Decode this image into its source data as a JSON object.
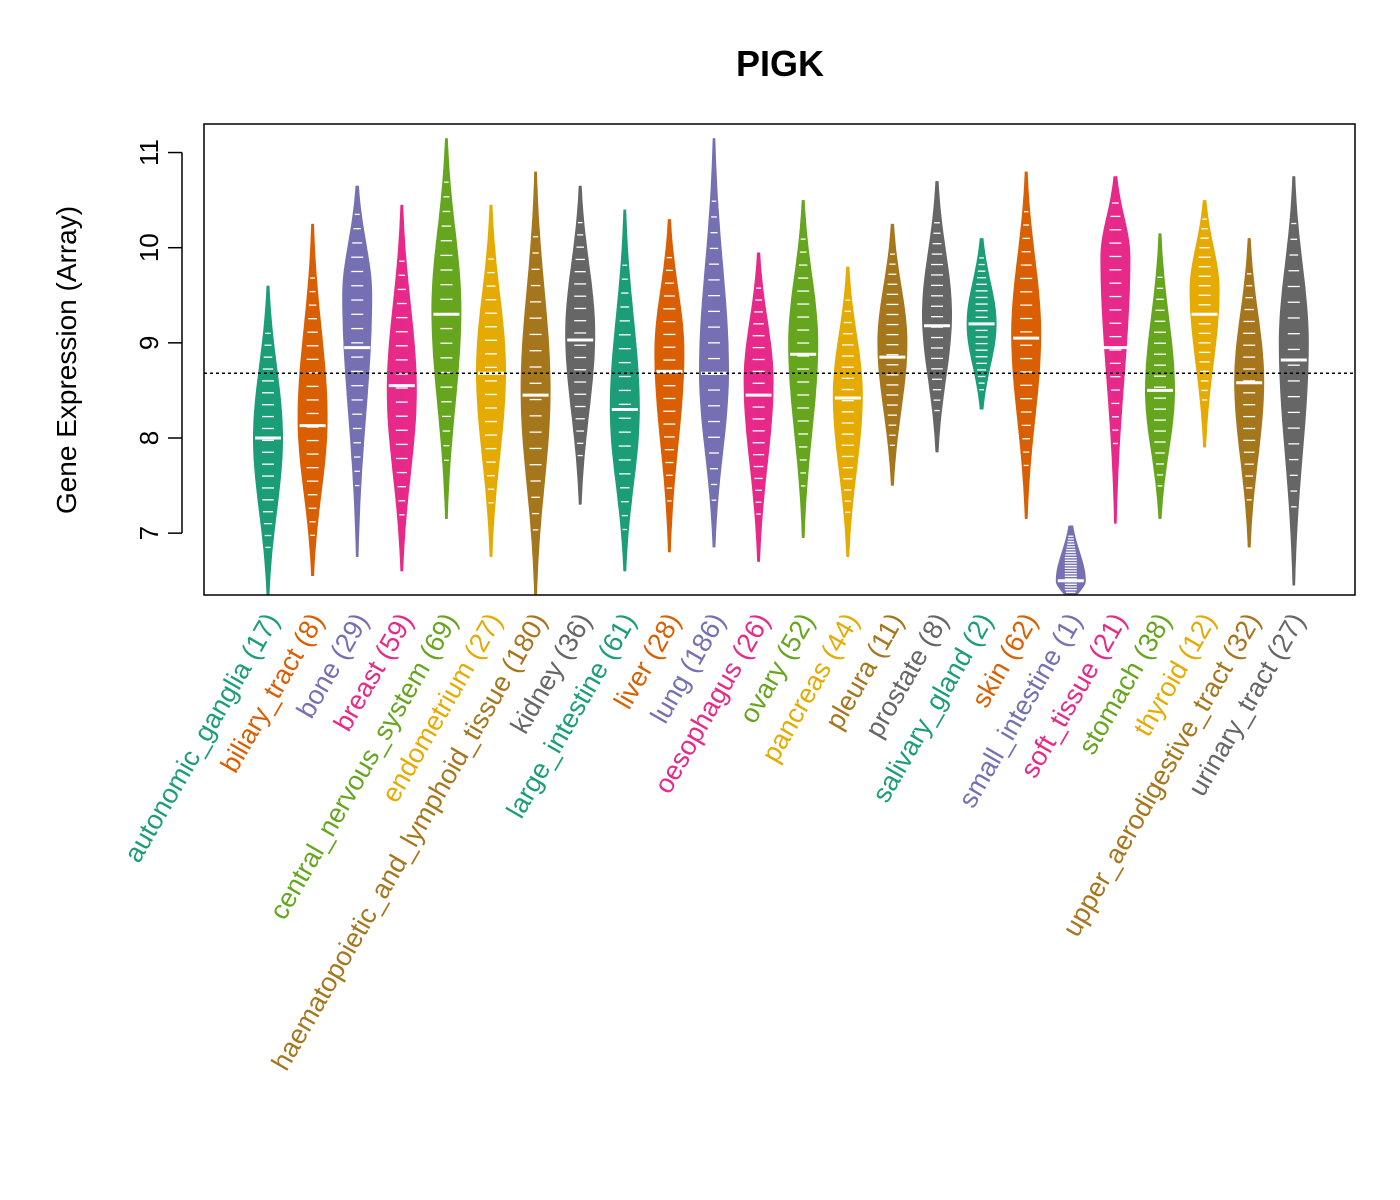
{
  "chart_data": {
    "type": "violin",
    "title": "PIGK",
    "xlabel": "",
    "ylabel": "Gene Expression (Array)",
    "ylim": [
      6.35,
      11.3
    ],
    "yticks": [
      7,
      8,
      9,
      10,
      11
    ],
    "reference_line": 8.68,
    "groups": [
      {
        "label": "autonomic_ganglia",
        "n": "(17)",
        "color": "#1B9E77",
        "min": 6.35,
        "max": 9.6,
        "median": 8.0,
        "mode": 8.0
      },
      {
        "label": "biliary_tract",
        "n": "(8)",
        "color": "#D95F02",
        "min": 6.55,
        "max": 10.25,
        "median": 8.13,
        "mode": 8.2
      },
      {
        "label": "bone",
        "n": "(29)",
        "color": "#7570B3",
        "min": 6.75,
        "max": 10.65,
        "median": 8.95,
        "mode": 9.5
      },
      {
        "label": "breast",
        "n": "(59)",
        "color": "#E7298A",
        "min": 6.6,
        "max": 10.45,
        "median": 8.55,
        "mode": 8.5
      },
      {
        "label": "central_nervous_system",
        "n": "(69)",
        "color": "#66A61E",
        "min": 7.15,
        "max": 11.15,
        "median": 9.3,
        "mode": 9.35
      },
      {
        "label": "endometrium",
        "n": "(27)",
        "color": "#E6AB02",
        "min": 6.75,
        "max": 10.45,
        "median": 8.68,
        "mode": 8.7
      },
      {
        "label": "haematopoietic_and_lymphoid_tissue",
        "n": "(180)",
        "color": "#A6761D",
        "min": 6.35,
        "max": 10.8,
        "median": 8.45,
        "mode": 8.5
      },
      {
        "label": "kidney",
        "n": "(36)",
        "color": "#666666",
        "min": 7.3,
        "max": 10.65,
        "median": 9.03,
        "mode": 9.1
      },
      {
        "label": "large_intestine",
        "n": "(61)",
        "color": "#1B9E77",
        "min": 6.6,
        "max": 10.4,
        "median": 8.3,
        "mode": 8.3
      },
      {
        "label": "liver",
        "n": "(28)",
        "color": "#D95F02",
        "min": 6.8,
        "max": 10.3,
        "median": 8.7,
        "mode": 8.9
      },
      {
        "label": "lung",
        "n": "(186)",
        "color": "#7570B3",
        "min": 6.85,
        "max": 11.15,
        "median": 8.68,
        "mode": 8.7
      },
      {
        "label": "oesophagus",
        "n": "(26)",
        "color": "#E7298A",
        "min": 6.7,
        "max": 9.95,
        "median": 8.45,
        "mode": 8.6
      },
      {
        "label": "ovary",
        "n": "(52)",
        "color": "#66A61E",
        "min": 6.95,
        "max": 10.5,
        "median": 8.88,
        "mode": 9.0
      },
      {
        "label": "pancreas",
        "n": "(44)",
        "color": "#E6AB02",
        "min": 6.75,
        "max": 9.8,
        "median": 8.42,
        "mode": 8.45
      },
      {
        "label": "pleura",
        "n": "(11)",
        "color": "#A6761D",
        "min": 7.5,
        "max": 10.25,
        "median": 8.85,
        "mode": 9.0
      },
      {
        "label": "prostate",
        "n": "(8)",
        "color": "#666666",
        "min": 7.85,
        "max": 10.7,
        "median": 9.18,
        "mode": 9.3
      },
      {
        "label": "salivary_gland",
        "n": "(2)",
        "color": "#1B9E77",
        "min": 8.3,
        "max": 10.1,
        "median": 9.2,
        "mode": 9.2
      },
      {
        "label": "skin",
        "n": "(62)",
        "color": "#D95F02",
        "min": 7.15,
        "max": 10.8,
        "median": 9.05,
        "mode": 9.1
      },
      {
        "label": "small_intestine",
        "n": "(1)",
        "color": "#7570B3",
        "min": 6.35,
        "max": 7.08,
        "median": 6.5,
        "mode": 6.5
      },
      {
        "label": "soft_tissue",
        "n": "(21)",
        "color": "#E7298A",
        "min": 7.1,
        "max": 10.75,
        "median": 8.95,
        "mode": 9.9
      },
      {
        "label": "stomach",
        "n": "(38)",
        "color": "#66A61E",
        "min": 7.15,
        "max": 10.15,
        "median": 8.5,
        "mode": 8.5
      },
      {
        "label": "thyroid",
        "n": "(12)",
        "color": "#E6AB02",
        "min": 7.9,
        "max": 10.5,
        "median": 9.3,
        "mode": 9.55
      },
      {
        "label": "upper_aerodigestive_tract",
        "n": "(32)",
        "color": "#A6761D",
        "min": 6.85,
        "max": 10.1,
        "median": 8.58,
        "mode": 8.6
      },
      {
        "label": "urinary_tract",
        "n": "(27)",
        "color": "#666666",
        "min": 6.45,
        "max": 10.75,
        "median": 8.82,
        "mode": 9.0
      }
    ]
  }
}
